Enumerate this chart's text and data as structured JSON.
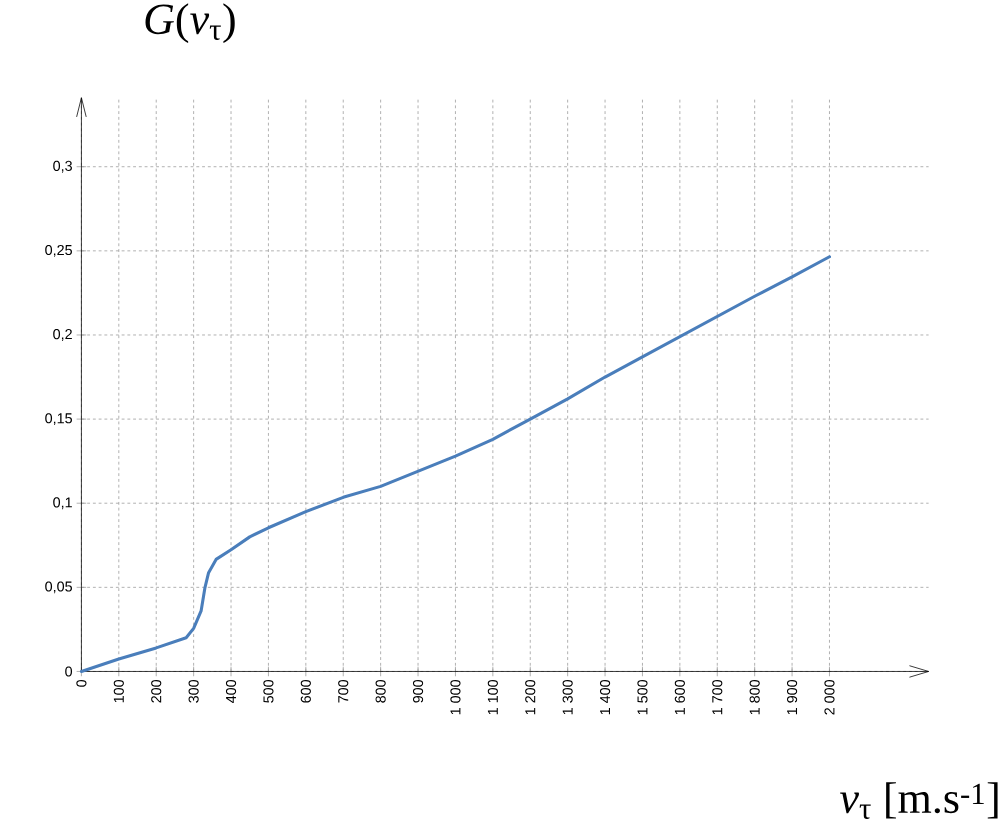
{
  "chart_data": {
    "type": "line",
    "xlabel": "*v*$_{τ}$ [m.s$^{-1}$]",
    "ylabel": "*G*(*v*$_{τ}$)",
    "x": [
      0,
      100,
      200,
      280,
      300,
      320,
      330,
      340,
      360,
      400,
      450,
      500,
      600,
      700,
      800,
      900,
      1000,
      1100,
      1200,
      1300,
      1400,
      1500,
      1600,
      1700,
      1800,
      1900,
      2000
    ],
    "series": [
      {
        "color": "#4a7ebb",
        "values": [
          0,
          0.0074,
          0.014,
          0.02,
          0.0256,
          0.036,
          0.0495,
          0.0587,
          0.0666,
          0.0723,
          0.08,
          0.0854,
          0.095,
          0.1035,
          0.11,
          0.119,
          0.128,
          0.138,
          0.15,
          0.162,
          0.175,
          0.187,
          0.199,
          0.211,
          0.223,
          0.2345,
          0.2465
        ]
      }
    ],
    "xlim": [
      0,
      2265
    ],
    "ylim": [
      0,
      0.341
    ],
    "xticks": [
      0,
      100,
      200,
      300,
      400,
      500,
      600,
      700,
      800,
      900,
      {
        "value": 1000,
        "label": "1 000"
      },
      {
        "value": 1100,
        "label": "1 100"
      },
      {
        "value": 1200,
        "label": "1 200"
      },
      {
        "value": 1300,
        "label": "1 300"
      },
      {
        "value": 1400,
        "label": "1 400"
      },
      {
        "value": 1500,
        "label": "1 500"
      },
      {
        "value": 1600,
        "label": "1 600"
      },
      {
        "value": 1700,
        "label": "1 700"
      },
      {
        "value": 1800,
        "label": "1 800"
      },
      {
        "value": 1900,
        "label": "1 900"
      },
      {
        "value": 2000,
        "label": "2 000"
      }
    ],
    "yticks": [
      0,
      {
        "value": 0.05,
        "label": "0,05"
      },
      {
        "value": 0.1,
        "label": "0,1"
      },
      {
        "value": 0.15,
        "label": "0,15"
      },
      {
        "value": 0.2,
        "label": "0,2"
      },
      {
        "value": 0.25,
        "label": "0,25"
      },
      {
        "value": 0.3,
        "label": "0,3"
      }
    ],
    "grid": true,
    "marker": "none",
    "line_style": "solid"
  }
}
